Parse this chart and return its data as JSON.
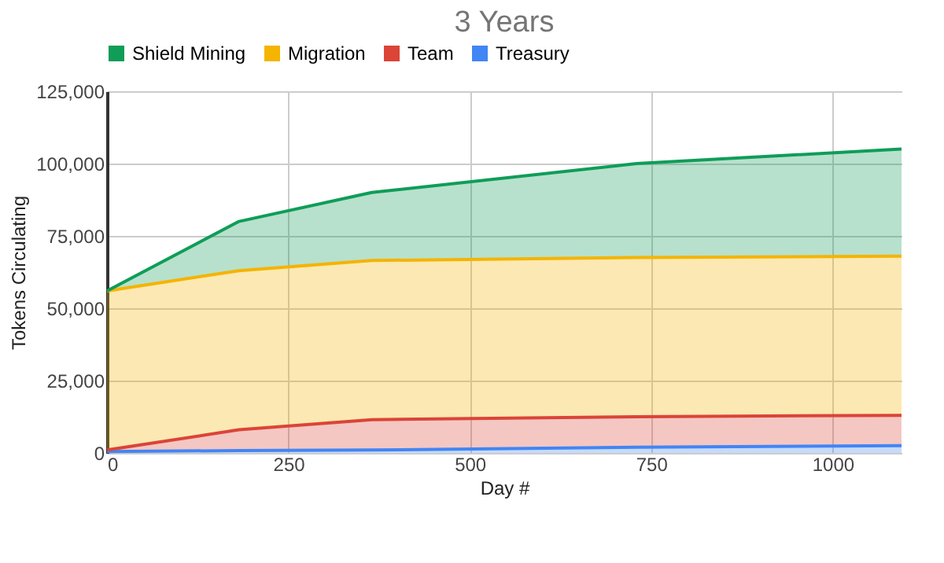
{
  "chart_data": {
    "type": "area",
    "title": "3 Years",
    "xlabel": "Day #",
    "ylabel": "Tokens Circulating",
    "stacked": true,
    "x": [
      0,
      182,
      365,
      730,
      1095
    ],
    "series": [
      {
        "name": "Treasury",
        "color": "#4285f4",
        "values": [
          500,
          800,
          1000,
          2000,
          2500
        ]
      },
      {
        "name": "Team",
        "color": "#db4437",
        "values": [
          500,
          7200,
          10500,
          10500,
          10500
        ]
      },
      {
        "name": "Migration",
        "color": "#f4b400",
        "values": [
          55000,
          55000,
          55000,
          55000,
          55000
        ]
      },
      {
        "name": "Shield Mining",
        "color": "#0f9d58",
        "values": [
          0,
          17000,
          23500,
          32500,
          37000
        ]
      }
    ],
    "xlim": [
      0,
      1095
    ],
    "xticks": [
      0,
      250,
      500,
      750,
      1000
    ],
    "ylim": [
      0,
      125000
    ],
    "yticks": [
      {
        "value": 0,
        "label": "0"
      },
      {
        "value": 25000,
        "label": "25,000"
      },
      {
        "value": 50000,
        "label": "50,000"
      },
      {
        "value": 75000,
        "label": "75,000"
      },
      {
        "value": 100000,
        "label": "100,000"
      },
      {
        "value": 125000,
        "label": "125,000"
      }
    ],
    "grid": true,
    "legend": "top"
  }
}
